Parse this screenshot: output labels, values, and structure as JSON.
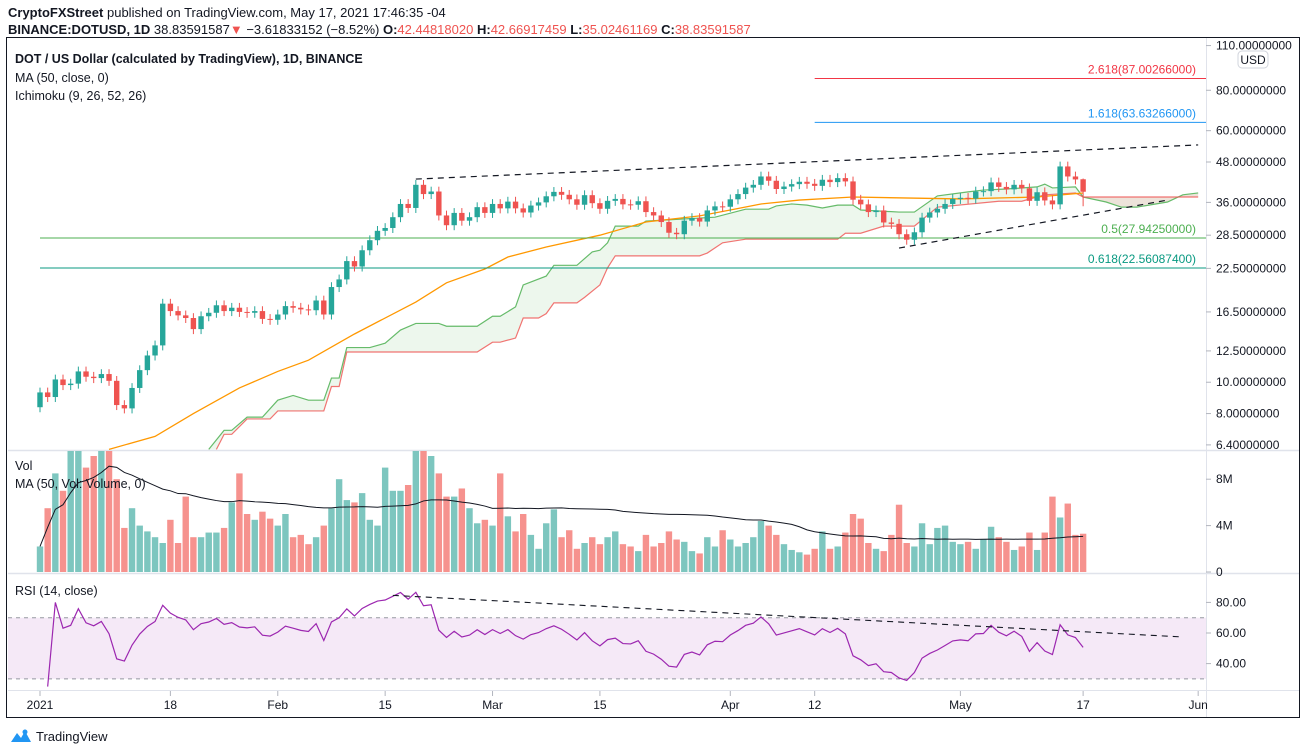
{
  "header": {
    "publisher": "CryptoFXStreet",
    "published_text": "published on TradingView.com, May 17, 2021 17:46:35 -04",
    "symbol": "BINANCE:DOTUSD, 1D",
    "last": "38.83591587",
    "change": "−3.61833152 (−8.52%)",
    "o_label": "O:",
    "o": "42.44818020",
    "h_label": "H:",
    "h": "42.66917459",
    "l_label": "L:",
    "l": "35.02461169",
    "c_label": "C:",
    "c": "38.83591587"
  },
  "legend": {
    "title": "DOT / US Dollar (calculated by TradingView), 1D, BINANCE",
    "ma": "MA (50, close, 0)",
    "ichimoku": "Ichimoku (9, 26, 52, 26)",
    "vol": "Vol",
    "vol_ma": "MA (50, Vol: Volume, 0)",
    "rsi": "RSI (14, close)"
  },
  "colors": {
    "up": "#26a69a",
    "down": "#ef5350",
    "ma": "#ff9800",
    "span_a": "#66bb6a",
    "span_b": "#ef5350",
    "rsi": "#9c27b0"
  },
  "footer": {
    "logo_text": "TradingView"
  },
  "chart_data": {
    "type": "candlestick",
    "price_scale": "log",
    "currency_badge": "USD",
    "start_date": "2021-01-01",
    "price_axis_labels": [
      {
        "v": 110,
        "t": "110.00000000"
      },
      {
        "v": 80,
        "t": "80.00000000"
      },
      {
        "v": 60,
        "t": "60.00000000"
      },
      {
        "v": 48,
        "t": "48.00000000"
      },
      {
        "v": 36,
        "t": "36.00000000"
      },
      {
        "v": 28.5,
        "t": "28.50000000"
      },
      {
        "v": 22.5,
        "t": "22.50000000"
      },
      {
        "v": 16.5,
        "t": "16.50000000"
      },
      {
        "v": 12.5,
        "t": "12.50000000"
      },
      {
        "v": 10,
        "t": "10.00000000"
      },
      {
        "v": 8,
        "t": "8.00000000"
      },
      {
        "v": 6.4,
        "t": "6.40000000"
      }
    ],
    "time_axis_labels": [
      {
        "date": "01-01",
        "t": "2021"
      },
      {
        "date": "01-18",
        "t": "18"
      },
      {
        "date": "02-01",
        "t": "Feb"
      },
      {
        "date": "02-15",
        "t": "15"
      },
      {
        "date": "03-01",
        "t": "Mar"
      },
      {
        "date": "03-15",
        "t": "15"
      },
      {
        "date": "04-01",
        "t": "Apr"
      },
      {
        "date": "04-12",
        "t": "12"
      },
      {
        "date": "05-01",
        "t": "May"
      },
      {
        "date": "05-17",
        "t": "17"
      },
      {
        "date": "06-01",
        "t": "Jun"
      }
    ],
    "closes": [
      9.3,
      9.0,
      10.2,
      9.8,
      9.9,
      10.8,
      10.4,
      10.3,
      10.6,
      10.1,
      8.5,
      8.3,
      9.6,
      10.9,
      12.1,
      13.0,
      17.5,
      16.6,
      16.1,
      15.8,
      14.6,
      16.0,
      16.4,
      17.3,
      16.6,
      17.0,
      16.5,
      16.4,
      16.6,
      15.7,
      15.6,
      16.2,
      17.2,
      17.0,
      16.8,
      16.7,
      17.9,
      16.2,
      19.7,
      20.8,
      23.7,
      22.8,
      25.6,
      27.5,
      29.4,
      30.0,
      32.4,
      35.6,
      34.6,
      40.8,
      38.2,
      38.9,
      32.8,
      30.6,
      33.4,
      31.6,
      32.4,
      34.8,
      33.4,
      35.6,
      34.5,
      36.2,
      34.5,
      33.5,
      35.2,
      36.0,
      37.6,
      38.8,
      38.0,
      36.8,
      35.4,
      37.9,
      35.8,
      34.4,
      36.4,
      36.9,
      35.5,
      35.4,
      36.3,
      33.6,
      32.8,
      31.3,
      29.0,
      28.7,
      31.6,
      32.2,
      31.4,
      34.0,
      35.0,
      34.9,
      36.8,
      38.2,
      40.0,
      40.8,
      43.3,
      42.0,
      39.6,
      40.3,
      41.0,
      41.7,
      41.1,
      40.5,
      42.3,
      41.6,
      42.8,
      41.8,
      36.7,
      35.5,
      33.6,
      34.0,
      31.2,
      30.9,
      28.7,
      27.6,
      29.1,
      32.3,
      33.5,
      34.4,
      35.6,
      36.9,
      37.2,
      37.0,
      38.9,
      39.0,
      41.5,
      40.2,
      39.5,
      40.8,
      39.8,
      36.4,
      38.7,
      36.5,
      35.5,
      46.5,
      43.3,
      42.4,
      38.84
    ],
    "last_candle": {
      "open": 42.4481802,
      "high": 42.66917459,
      "low": 35.02461169,
      "close": 38.83591587
    },
    "ma50": [
      [
        "01-10",
        6.2
      ],
      [
        "01-16",
        6.8
      ],
      [
        "01-21",
        8.0
      ],
      [
        "01-27",
        9.6
      ],
      [
        "02-01",
        10.8
      ],
      [
        "02-05",
        11.7
      ],
      [
        "02-11",
        14.1
      ],
      [
        "02-19",
        17.7
      ],
      [
        "02-23",
        20.3
      ],
      [
        "02-28",
        22.4
      ],
      [
        "03-03",
        24.4
      ],
      [
        "03-08",
        26.2
      ],
      [
        "03-15",
        28.5
      ],
      [
        "03-21",
        31.3
      ],
      [
        "03-28",
        32.7
      ],
      [
        "04-01",
        34.1
      ],
      [
        "04-05",
        35.6
      ],
      [
        "04-10",
        36.6
      ],
      [
        "04-17",
        37.4
      ],
      [
        "05-01",
        36.9
      ],
      [
        "05-11",
        37.4
      ],
      [
        "05-17",
        38.5
      ]
    ],
    "ichimoku_span_a": [
      [
        "01-23",
        6.2
      ],
      [
        "01-25",
        7.1
      ],
      [
        "01-26",
        7.1
      ],
      [
        "01-28",
        7.8
      ],
      [
        "01-30",
        7.8
      ],
      [
        "02-01",
        8.8
      ],
      [
        "02-03",
        9.1
      ],
      [
        "02-05",
        8.8
      ],
      [
        "02-07",
        8.8
      ],
      [
        "02-08",
        10.3
      ],
      [
        "02-09",
        10.3
      ],
      [
        "02-10",
        12.8
      ],
      [
        "02-13",
        12.8
      ],
      [
        "02-15",
        13.2
      ],
      [
        "02-17",
        14.5
      ],
      [
        "02-19",
        15.2
      ],
      [
        "02-22",
        15.2
      ],
      [
        "02-23",
        14.9
      ],
      [
        "02-27",
        14.9
      ],
      [
        "03-01",
        16.0
      ],
      [
        "03-02",
        16.0
      ],
      [
        "03-04",
        17.1
      ],
      [
        "03-05",
        20.0
      ],
      [
        "03-08",
        21.3
      ],
      [
        "03-09",
        23.0
      ],
      [
        "03-12",
        23.0
      ],
      [
        "03-14",
        25.3
      ],
      [
        "03-15",
        25.6
      ],
      [
        "03-16",
        27.0
      ],
      [
        "03-17",
        30.4
      ],
      [
        "03-20",
        30.4
      ],
      [
        "03-21",
        31.5
      ],
      [
        "03-30",
        32.4
      ],
      [
        "04-03",
        34.3
      ],
      [
        "04-06",
        34.3
      ],
      [
        "04-07",
        35.1
      ],
      [
        "04-09",
        35.6
      ],
      [
        "04-11",
        35.3
      ],
      [
        "04-13",
        34.6
      ],
      [
        "04-15",
        35.3
      ],
      [
        "04-17",
        35.3
      ],
      [
        "04-18",
        34.1
      ],
      [
        "04-23",
        33.6
      ],
      [
        "04-25",
        33.6
      ],
      [
        "04-28",
        37.7
      ],
      [
        "05-02",
        38.8
      ],
      [
        "05-04",
        39.3
      ],
      [
        "05-07",
        39.6
      ],
      [
        "05-11",
        40.2
      ],
      [
        "05-12",
        41.0
      ],
      [
        "05-13",
        39.9
      ],
      [
        "05-16",
        40.2
      ],
      [
        "05-17",
        37.4
      ],
      [
        "05-20",
        36.1
      ],
      [
        "05-22",
        34.8
      ],
      [
        "05-24",
        34.8
      ],
      [
        "05-28",
        36.1
      ],
      [
        "05-30",
        38.0
      ],
      [
        "06-01",
        38.5
      ]
    ],
    "ichimoku_span_b": [
      [
        "01-24",
        6.2
      ],
      [
        "01-25",
        6.9
      ],
      [
        "01-26",
        6.9
      ],
      [
        "01-28",
        7.7
      ],
      [
        "01-31",
        7.7
      ],
      [
        "02-01",
        8.15
      ],
      [
        "02-07",
        8.15
      ],
      [
        "02-08",
        9.7
      ],
      [
        "02-09",
        9.7
      ],
      [
        "02-10",
        12.4
      ],
      [
        "02-27",
        12.4
      ],
      [
        "03-01",
        13.3
      ],
      [
        "03-02",
        13.3
      ],
      [
        "03-04",
        13.7
      ],
      [
        "03-05",
        15.8
      ],
      [
        "03-07",
        15.8
      ],
      [
        "03-08",
        16.3
      ],
      [
        "03-09",
        17.6
      ],
      [
        "03-12",
        17.6
      ],
      [
        "03-13",
        18.3
      ],
      [
        "03-15",
        20.0
      ],
      [
        "03-16",
        22.6
      ],
      [
        "03-17",
        24.6
      ],
      [
        "03-28",
        24.6
      ],
      [
        "03-29",
        25.1
      ],
      [
        "03-31",
        27.0
      ],
      [
        "04-03",
        27.7
      ],
      [
        "04-15",
        27.7
      ],
      [
        "04-16",
        28.9
      ],
      [
        "04-18",
        28.9
      ],
      [
        "04-21",
        30.4
      ],
      [
        "04-25",
        30.4
      ],
      [
        "04-28",
        34.8
      ],
      [
        "05-06",
        36.3
      ],
      [
        "05-09",
        36.3
      ],
      [
        "05-12",
        38.0
      ],
      [
        "05-16",
        38.5
      ],
      [
        "05-17",
        37.4
      ],
      [
        "06-01",
        37.4
      ]
    ],
    "fib_levels": [
      {
        "label": "2.618(87.00266000)",
        "value": 87.00266,
        "color": "#f23645",
        "from": "04-12"
      },
      {
        "label": "1.618(63.63266000)",
        "value": 63.63266,
        "color": "#2196f3",
        "from": "04-12"
      },
      {
        "label": "0.5(27.94250000)",
        "value": 27.9425,
        "color": "#4caf50",
        "from": "01-01"
      },
      {
        "label": "0.618(22.56087400)",
        "value": 22.560874,
        "color": "#089981",
        "from": "01-01"
      }
    ],
    "trendlines": [
      {
        "from": [
          "02-19",
          42.5
        ],
        "to": [
          "06-01",
          54.2
        ]
      },
      {
        "from": [
          "04-23",
          26.0
        ],
        "to": [
          "05-28",
          36.6
        ]
      }
    ],
    "volume_millions": [
      2.2,
      5.5,
      8.5,
      7.0,
      11,
      12,
      9,
      10,
      12,
      14,
      8,
      3.8,
      5.5,
      4.0,
      3.5,
      3.0,
      2.5,
      4.5,
      2.5,
      6.5,
      3.0,
      3.0,
      3.4,
      3.4,
      3.8,
      6.0,
      8.5,
      5.0,
      4.5,
      5.2,
      4.6,
      4.0,
      5.0,
      3.0,
      3.2,
      2.4,
      3.0,
      4.0,
      5.5,
      8.0,
      6.2,
      6.0,
      6.8,
      4.5,
      4.0,
      9.0,
      7.0,
      7.0,
      7.5,
      12,
      15,
      10,
      8.5,
      6.5,
      6.5,
      7.2,
      5.5,
      4.2,
      4.5,
      4.0,
      8.5,
      4.8,
      3.5,
      5.0,
      3.2,
      2.0,
      4.2,
      5.4,
      3.0,
      3.6,
      2.0,
      2.5,
      3.0,
      2.4,
      3.0,
      3.5,
      2.4,
      2.2,
      1.8,
      3.2,
      2.2,
      2.5,
      3.5,
      2.8,
      2.6,
      1.8,
      1.6,
      3.0,
      2.2,
      3.6,
      2.8,
      2.2,
      2.5,
      3.0,
      4.4,
      4.0,
      3.2,
      2.4,
      1.9,
      1.7,
      1.5,
      2.0,
      3.5,
      2.0,
      2.2,
      3.4,
      5.0,
      4.6,
      2.5,
      2.0,
      1.8,
      3.2,
      5.8,
      2.5,
      2.2,
      4.2,
      2.4,
      3.8,
      4.0,
      2.6,
      2.4,
      2.6,
      2.0,
      2.8,
      3.9,
      3.0,
      2.6,
      1.9,
      2.2,
      3.4,
      1.9,
      3.4,
      6.5,
      4.7,
      5.9,
      3.2,
      3.3
    ],
    "volume_axis_labels": [
      {
        "v": 8,
        "t": "8M"
      },
      {
        "v": 4,
        "t": "4M"
      },
      {
        "v": 0,
        "t": "0"
      }
    ],
    "rsi_axis_labels": [
      {
        "v": 80,
        "t": "80.00"
      },
      {
        "v": 60,
        "t": "60.00"
      },
      {
        "v": 40,
        "t": "40.00"
      }
    ],
    "rsi_band": [
      30,
      70
    ],
    "rsi_trendline": {
      "from": [
        "02-16",
        84.6
      ],
      "to": [
        "05-30",
        57.4
      ]
    }
  }
}
